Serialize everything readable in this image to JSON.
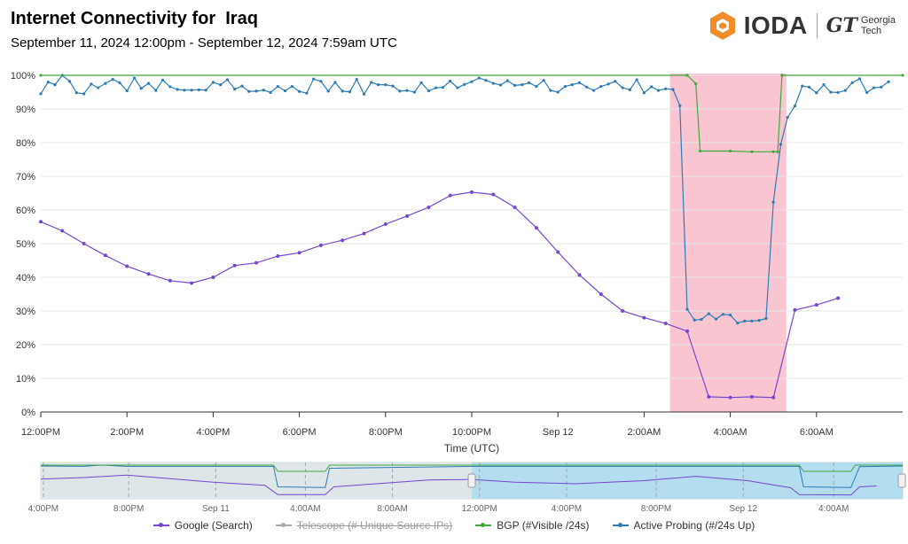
{
  "header": {
    "title": "Internet Connectivity for  Iraq",
    "subtitle": "September 11, 2024 12:00pm - September 12, 2024 7:59am UTC",
    "logo_text": "IODA",
    "gt_mark": "GT",
    "gt_line1": "Georgia",
    "gt_line2": "Tech"
  },
  "colors": {
    "google": "#7646cf",
    "telescope": "#6f6f9c",
    "bgp": "#3fa83f",
    "active": "#2c7bb6",
    "outage_band": "#f9c5d1",
    "logo_orange": "#f28c28"
  },
  "chart_data": {
    "type": "line",
    "xlabel": "Time (UTC)",
    "ylabel": "",
    "ylim": [
      0,
      100
    ],
    "y_ticks": [
      "0%",
      "10%",
      "20%",
      "30%",
      "40%",
      "50%",
      "60%",
      "70%",
      "80%",
      "90%",
      "100%"
    ],
    "x_range_hours": [
      0,
      20
    ],
    "x_ticks": [
      {
        "h": 0,
        "label": "12:00PM"
      },
      {
        "h": 2,
        "label": "2:00PM"
      },
      {
        "h": 4,
        "label": "4:00PM"
      },
      {
        "h": 6,
        "label": "6:00PM"
      },
      {
        "h": 8,
        "label": "8:00PM"
      },
      {
        "h": 10,
        "label": "10:00PM"
      },
      {
        "h": 12,
        "label": "Sep 12"
      },
      {
        "h": 14,
        "label": "2:00AM"
      },
      {
        "h": 16,
        "label": "4:00AM"
      },
      {
        "h": 18,
        "label": "6:00AM"
      }
    ],
    "outage_band_hours": [
      14.6,
      17.3
    ],
    "series": [
      {
        "name": "Google (Search)",
        "key": "google",
        "points": [
          [
            0,
            56.5
          ],
          [
            0.5,
            53.8
          ],
          [
            1,
            50
          ],
          [
            1.5,
            46.5
          ],
          [
            2,
            43.3
          ],
          [
            2.5,
            41
          ],
          [
            3,
            39
          ],
          [
            3.5,
            38.3
          ],
          [
            4,
            40
          ],
          [
            4.5,
            43.5
          ],
          [
            5,
            44.3
          ],
          [
            5.5,
            46.3
          ],
          [
            6,
            47.3
          ],
          [
            6.5,
            49.5
          ],
          [
            7,
            51
          ],
          [
            7.5,
            53
          ],
          [
            8,
            55.8
          ],
          [
            8.5,
            58.2
          ],
          [
            9,
            60.8
          ],
          [
            9.5,
            64.3
          ],
          [
            10,
            65.3
          ],
          [
            10.5,
            64.6
          ],
          [
            11,
            60.8
          ],
          [
            11.5,
            54.7
          ],
          [
            12,
            47.5
          ],
          [
            12.5,
            40.7
          ],
          [
            13,
            35
          ],
          [
            13.5,
            30
          ],
          [
            14,
            28
          ],
          [
            14.5,
            26.3
          ],
          [
            15,
            24
          ],
          [
            15.5,
            4.5
          ],
          [
            16,
            4.3
          ],
          [
            16.5,
            4.5
          ],
          [
            17,
            4.3
          ],
          [
            17.5,
            30.3
          ],
          [
            18,
            31.8
          ],
          [
            18.5,
            33.8
          ]
        ]
      },
      {
        "name": "Telescope (# Unique Source IPs)",
        "key": "telescope",
        "disabled": true,
        "points": []
      },
      {
        "name": "BGP (#Visible /24s)",
        "key": "bgp",
        "points": [
          [
            0,
            100
          ],
          [
            15,
            100
          ],
          [
            15.2,
            97.5
          ],
          [
            15.3,
            77.5
          ],
          [
            16,
            77.5
          ],
          [
            16.5,
            77.3
          ],
          [
            17,
            77.3
          ],
          [
            17.1,
            77.3
          ],
          [
            17.2,
            100
          ],
          [
            20,
            100
          ]
        ]
      },
      {
        "name": "Active Probing (#/24s Up)",
        "key": "active",
        "points": [
          [
            0,
            94.5
          ],
          [
            0.17,
            98
          ],
          [
            0.33,
            97.2
          ],
          [
            0.5,
            100
          ],
          [
            0.67,
            98.2
          ],
          [
            0.83,
            94.8
          ],
          [
            1,
            94.5
          ],
          [
            1.17,
            97.4
          ],
          [
            1.33,
            96.3
          ],
          [
            1.5,
            97.6
          ],
          [
            1.67,
            98.8
          ],
          [
            1.83,
            97.8
          ],
          [
            2,
            95.4
          ],
          [
            2.17,
            99.2
          ],
          [
            2.33,
            96.1
          ],
          [
            2.5,
            97.6
          ],
          [
            2.67,
            95.5
          ],
          [
            2.83,
            98.6
          ],
          [
            3,
            96.6
          ],
          [
            3.17,
            95.8
          ],
          [
            3.33,
            95.6
          ],
          [
            3.5,
            95.6
          ],
          [
            3.67,
            95.7
          ],
          [
            3.83,
            95.6
          ],
          [
            4,
            97.9
          ],
          [
            4.17,
            97.2
          ],
          [
            4.33,
            98.7
          ],
          [
            4.5,
            95.9
          ],
          [
            4.67,
            96.8
          ],
          [
            4.83,
            95.2
          ],
          [
            5,
            95.3
          ],
          [
            5.17,
            95.6
          ],
          [
            5.33,
            94.9
          ],
          [
            5.5,
            96.7
          ],
          [
            5.67,
            95.4
          ],
          [
            5.83,
            96.7
          ],
          [
            6,
            95.2
          ],
          [
            6.17,
            94.7
          ],
          [
            6.33,
            98.9
          ],
          [
            6.5,
            98.2
          ],
          [
            6.67,
            95.3
          ],
          [
            6.83,
            97.9
          ],
          [
            7,
            95.3
          ],
          [
            7.17,
            95.1
          ],
          [
            7.33,
            98.8
          ],
          [
            7.5,
            94.4
          ],
          [
            7.67,
            97.9
          ],
          [
            7.83,
            97.2
          ],
          [
            8,
            97.2
          ],
          [
            8.17,
            96.8
          ],
          [
            8.33,
            95.3
          ],
          [
            8.5,
            95.5
          ],
          [
            8.67,
            95
          ],
          [
            8.83,
            97.8
          ],
          [
            9,
            95.4
          ],
          [
            9.17,
            96.3
          ],
          [
            9.33,
            96.4
          ],
          [
            9.5,
            98.3
          ],
          [
            9.67,
            96.3
          ],
          [
            9.83,
            97.3
          ],
          [
            10,
            98.1
          ],
          [
            10.17,
            99.2
          ],
          [
            10.33,
            98.5
          ],
          [
            10.5,
            97.6
          ],
          [
            10.67,
            97.1
          ],
          [
            10.83,
            98.4
          ],
          [
            11,
            97
          ],
          [
            11.17,
            97.2
          ],
          [
            11.33,
            97.8
          ],
          [
            11.5,
            96.7
          ],
          [
            11.67,
            98.5
          ],
          [
            11.83,
            95.5
          ],
          [
            12,
            95
          ],
          [
            12.17,
            96.7
          ],
          [
            12.33,
            97.2
          ],
          [
            12.5,
            97.8
          ],
          [
            12.67,
            96.5
          ],
          [
            12.83,
            95.5
          ],
          [
            13,
            96.7
          ],
          [
            13.17,
            97.4
          ],
          [
            13.33,
            98.2
          ],
          [
            13.5,
            96.3
          ],
          [
            13.67,
            95.7
          ],
          [
            13.83,
            98.7
          ],
          [
            14,
            94.8
          ],
          [
            14.17,
            96.6
          ],
          [
            14.33,
            95.5
          ],
          [
            14.5,
            96
          ],
          [
            14.67,
            95.8
          ],
          [
            14.83,
            91
          ],
          [
            15,
            30.5
          ],
          [
            15.17,
            27.3
          ],
          [
            15.33,
            27.5
          ],
          [
            15.5,
            29.2
          ],
          [
            15.67,
            27.6
          ],
          [
            15.83,
            29
          ],
          [
            16,
            28.8
          ],
          [
            16.17,
            26.4
          ],
          [
            16.33,
            27
          ],
          [
            16.5,
            27
          ],
          [
            16.67,
            27.2
          ],
          [
            16.83,
            27.8
          ],
          [
            17,
            62.3
          ],
          [
            17.17,
            79.5
          ],
          [
            17.33,
            87.5
          ],
          [
            17.5,
            90.9
          ],
          [
            17.67,
            96.8
          ],
          [
            17.83,
            96.5
          ],
          [
            18,
            94.8
          ],
          [
            18.17,
            97.2
          ],
          [
            18.33,
            95
          ],
          [
            18.5,
            94.9
          ],
          [
            18.67,
            95.5
          ],
          [
            18.83,
            97.8
          ],
          [
            19,
            99
          ],
          [
            19.17,
            94.9
          ],
          [
            19.33,
            96.3
          ],
          [
            19.5,
            96.5
          ],
          [
            19.67,
            98.1
          ]
        ]
      }
    ]
  },
  "navigator": {
    "x_ticks": [
      {
        "label": "4:00PM",
        "f": 0.003
      },
      {
        "label": "8:00PM",
        "f": 0.102
      },
      {
        "label": "Sep 11",
        "f": 0.203
      },
      {
        "label": "4:00AM",
        "f": 0.307
      },
      {
        "label": "8:00AM",
        "f": 0.408
      },
      {
        "label": "12:00PM",
        "f": 0.509
      },
      {
        "label": "4:00PM",
        "f": 0.61
      },
      {
        "label": "8:00PM",
        "f": 0.714
      },
      {
        "label": "Sep 12",
        "f": 0.815
      },
      {
        "label": "4:00AM",
        "f": 0.92
      }
    ],
    "selection": [
      0.5,
      1.0
    ]
  },
  "legend": [
    {
      "label": "Google (Search)",
      "key": "google",
      "disabled": false
    },
    {
      "label": "Telescope (# Unique Source IPs)",
      "key": "telescope",
      "disabled": true
    },
    {
      "label": "BGP (#Visible /24s)",
      "key": "bgp",
      "disabled": false
    },
    {
      "label": "Active Probing (#/24s Up)",
      "key": "active",
      "disabled": false
    }
  ]
}
